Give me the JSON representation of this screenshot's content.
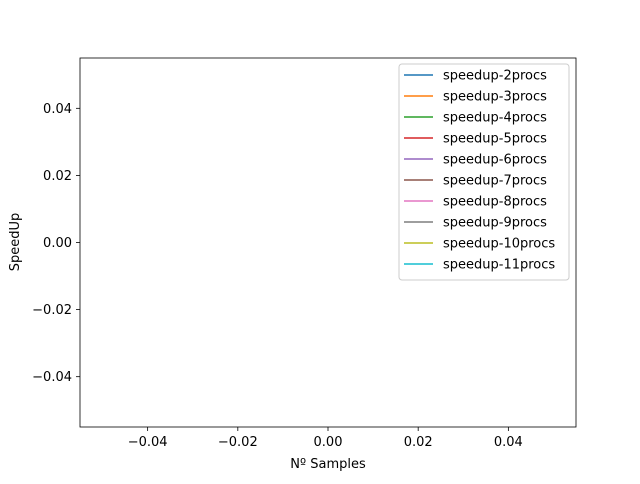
{
  "chart_data": {
    "type": "line",
    "xlabel": "Nº Samples",
    "ylabel": "SpeedUp",
    "xlim": [
      -0.055,
      0.055
    ],
    "ylim": [
      -0.055,
      0.055
    ],
    "x_ticks": [
      -0.04,
      -0.02,
      0.0,
      0.02,
      0.04
    ],
    "x_tick_labels": [
      "−0.04",
      "−0.02",
      "0.00",
      "0.02",
      "0.04"
    ],
    "y_ticks": [
      -0.04,
      -0.02,
      0.0,
      0.02,
      0.04
    ],
    "y_tick_labels": [
      "−0.04",
      "−0.02",
      "0.00",
      "0.02",
      "0.04"
    ],
    "grid": false,
    "legend_position": "upper right",
    "series": [
      {
        "name": "speedup-2procs",
        "color": "#1f77b4",
        "x": [],
        "y": []
      },
      {
        "name": "speedup-3procs",
        "color": "#ff7f0e",
        "x": [],
        "y": []
      },
      {
        "name": "speedup-4procs",
        "color": "#2ca02c",
        "x": [],
        "y": []
      },
      {
        "name": "speedup-5procs",
        "color": "#d62728",
        "x": [],
        "y": []
      },
      {
        "name": "speedup-6procs",
        "color": "#9467bd",
        "x": [],
        "y": []
      },
      {
        "name": "speedup-7procs",
        "color": "#8c564b",
        "x": [],
        "y": []
      },
      {
        "name": "speedup-8procs",
        "color": "#e377c2",
        "x": [],
        "y": []
      },
      {
        "name": "speedup-9procs",
        "color": "#7f7f7f",
        "x": [],
        "y": []
      },
      {
        "name": "speedup-10procs",
        "color": "#bcbd22",
        "x": [],
        "y": []
      },
      {
        "name": "speedup-11procs",
        "color": "#17becf",
        "x": [],
        "y": []
      }
    ]
  }
}
